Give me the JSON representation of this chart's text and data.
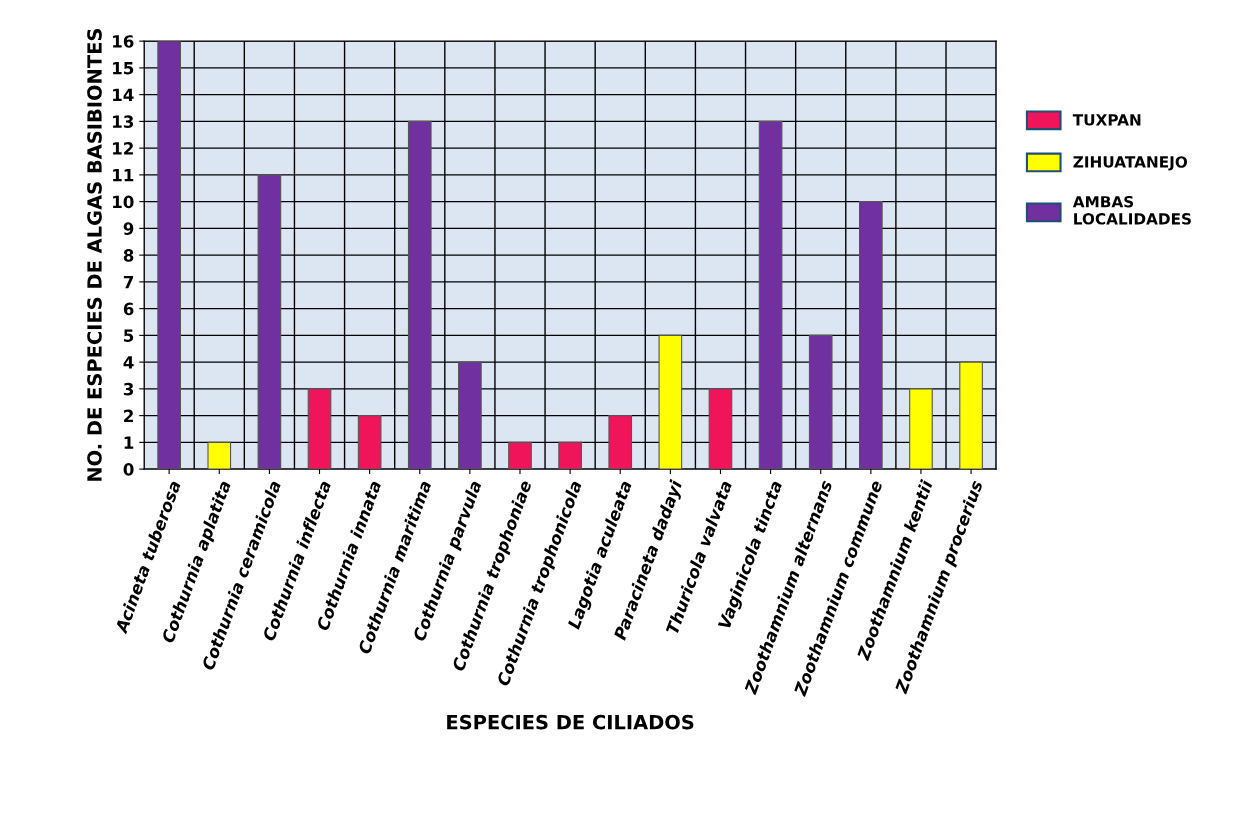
{
  "chart_data": {
    "type": "bar",
    "xlabel": "ESPECIES DE CILIADOS",
    "ylabel": "NO. DE ESPECIES DE ALGAS BASIBIONTES",
    "categories": [
      "Acineta tuberosa",
      "Cothurnia aplatita",
      "Cothurnia ceramicola",
      "Cothurnia inflecta",
      "Cothurnia innata",
      "Cothurnia maritima",
      "Cothurnia parvula",
      "Cothurnia trophoniae",
      "Cothurnia trophonicola",
      "Lagotia aculeata",
      "Paracineta dadayi",
      "Thuricola valvata",
      "Vaginicola tincta",
      "Zoothamnium alternans",
      "Zoothamnium commune",
      "Zoothamnium kentii",
      "Zoothamnium procerius"
    ],
    "series": [
      {
        "name": "TUXPAN",
        "color": "#f0145a",
        "values": [
          null,
          null,
          null,
          3,
          2,
          null,
          null,
          1,
          1,
          2,
          null,
          3,
          null,
          null,
          null,
          null,
          null
        ]
      },
      {
        "name": "ZIHUATANEJO",
        "color": "#ffff00",
        "values": [
          null,
          1,
          null,
          null,
          null,
          null,
          null,
          null,
          null,
          null,
          5,
          null,
          null,
          null,
          null,
          3,
          4
        ]
      },
      {
        "name": "AMBAS LOCALIDADES",
        "color": "#7030a0",
        "values": [
          16,
          null,
          11,
          null,
          null,
          13,
          4,
          null,
          null,
          null,
          null,
          null,
          13,
          5,
          10,
          null,
          null
        ]
      }
    ],
    "ylim": [
      0,
      16
    ],
    "yticks": [
      0,
      1,
      2,
      3,
      4,
      5,
      6,
      7,
      8,
      9,
      10,
      11,
      12,
      13,
      14,
      15,
      16
    ],
    "grid": true,
    "legend": "right"
  }
}
